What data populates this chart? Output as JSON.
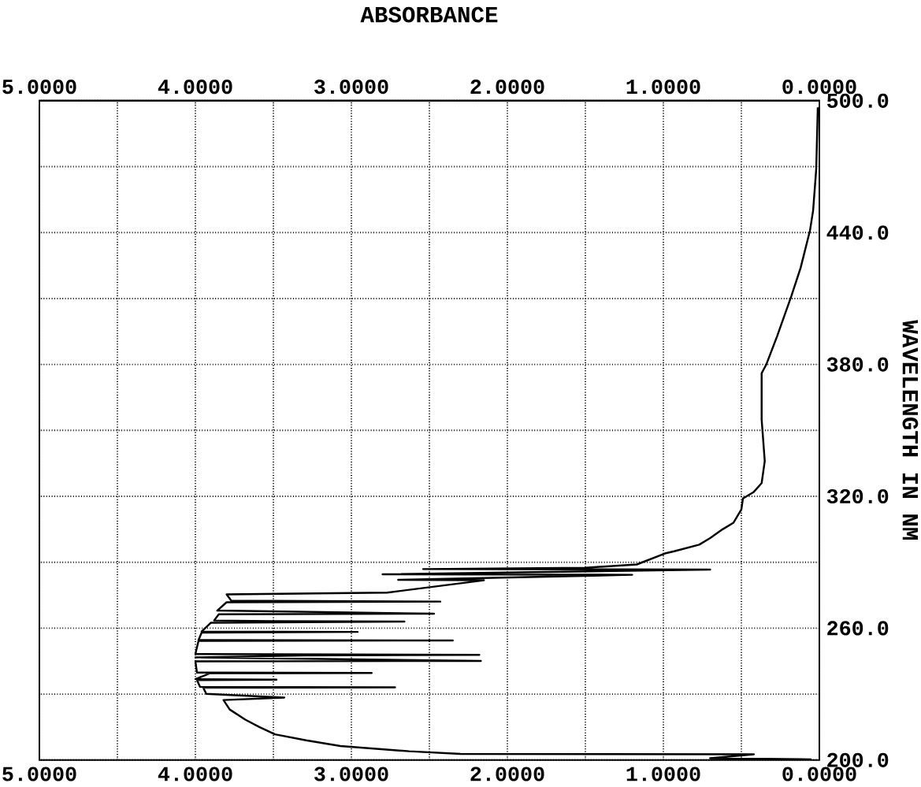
{
  "chart_data": {
    "type": "line",
    "title": "ABSORBANCE",
    "ylabel": "WAVELENGTH IN NM",
    "xlim": [
      5,
      0
    ],
    "ylim": [
      200,
      500
    ],
    "x2lim": [
      5,
      0
    ],
    "xticks": [
      {
        "value": 5,
        "label": "5.0000"
      },
      {
        "value": 4.5,
        "label": null
      },
      {
        "value": 4,
        "label": "4.0000"
      },
      {
        "value": 3.5,
        "label": null
      },
      {
        "value": 3,
        "label": "3.0000"
      },
      {
        "value": 2.5,
        "label": null
      },
      {
        "value": 2,
        "label": "2.0000"
      },
      {
        "value": 1.5,
        "label": null
      },
      {
        "value": 1,
        "label": "1.0000"
      },
      {
        "value": 0.5,
        "label": null
      },
      {
        "value": 0,
        "label": "0.0000"
      }
    ],
    "x2ticks": [
      {
        "value": 5,
        "label": "5.0000"
      },
      {
        "value": 4.5,
        "label": null
      },
      {
        "value": 4,
        "label": "4.0000"
      },
      {
        "value": 3.5,
        "label": null
      },
      {
        "value": 3,
        "label": "3.0000"
      },
      {
        "value": 2.5,
        "label": null
      },
      {
        "value": 2,
        "label": "2.0000"
      },
      {
        "value": 1.5,
        "label": null
      },
      {
        "value": 1,
        "label": "1.0000"
      },
      {
        "value": 0.5,
        "label": null
      },
      {
        "value": 0,
        "label": "0.0000"
      }
    ],
    "yticks": [
      {
        "value": 200,
        "label": "200.0"
      },
      {
        "value": 230,
        "label": null
      },
      {
        "value": 260,
        "label": "260.0"
      },
      {
        "value": 290,
        "label": null
      },
      {
        "value": 320,
        "label": "320.0"
      },
      {
        "value": 350,
        "label": null
      },
      {
        "value": 380,
        "label": "380.0"
      },
      {
        "value": 410,
        "label": null
      },
      {
        "value": 440,
        "label": "440.0"
      },
      {
        "value": 470,
        "label": null
      },
      {
        "value": 500,
        "label": "500.0"
      }
    ],
    "grid": true,
    "series": [
      {
        "color": "#000000",
        "x": [
          0.01,
          0.02,
          0.04,
          0.06,
          0.12,
          0.18,
          0.22,
          0.27,
          0.34,
          0.37,
          0.37,
          0.35,
          0.37,
          0.42,
          0.49,
          0.5,
          0.55,
          0.62,
          0.7,
          0.77,
          0.93,
          0.99,
          1.17,
          1.5,
          2.54,
          0.7,
          2.8,
          1.2,
          2.7,
          2.15,
          2.77,
          3.8,
          3.77,
          2.43,
          3.8,
          3.86,
          2.47,
          3.85,
          3.88,
          3.51,
          2.66,
          3.9,
          3.96,
          2.96,
          3.96,
          3.98,
          2.35,
          3.98,
          4.0,
          2.18,
          3.3,
          4.0,
          2.17,
          4.0,
          3.99,
          2.87,
          3.91,
          4.0,
          3.48,
          3.99,
          3.97,
          2.72,
          3.95,
          3.93,
          3.43,
          3.82,
          3.78,
          3.68,
          3.59,
          3.49,
          3.29,
          3.07,
          2.63,
          2.3,
          0.42,
          0.7,
          0.05
        ],
        "values": [
          497,
          469,
          450,
          441,
          424,
          411,
          403,
          393,
          380,
          376,
          355,
          336,
          326,
          322,
          319,
          314,
          308,
          305,
          301,
          298,
          295,
          294,
          289,
          287.5,
          286.9,
          286.7,
          284.5,
          284.3,
          282,
          281.8,
          276.2,
          275.4,
          272.5,
          272.1,
          271.8,
          268,
          266.6,
          266.3,
          263.5,
          263.2,
          263,
          262.5,
          258.5,
          258.3,
          258,
          254.6,
          254.4,
          254.2,
          248.2,
          247.9,
          247.6,
          246.7,
          245.1,
          244.9,
          239.8,
          239.6,
          239.4,
          236.8,
          236.6,
          236.4,
          233.3,
          233.1,
          232.9,
          230.1,
          228.4,
          227.3,
          223,
          218.4,
          215,
          211.7,
          209,
          206.4,
          204,
          202.8,
          202.6,
          200.8,
          200.3
        ]
      }
    ]
  }
}
